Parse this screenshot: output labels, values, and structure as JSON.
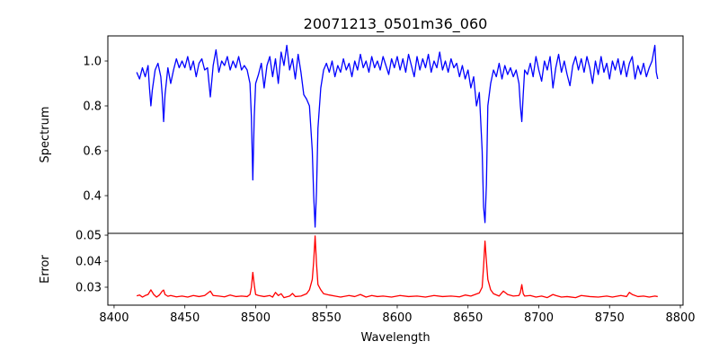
{
  "chart_data": [
    {
      "type": "line",
      "title": "20071213_0501m36_060",
      "xlabel": "",
      "ylabel": "Spectrum",
      "xlim": [
        8395.6,
        8801.9
      ],
      "ylim": [
        0.232,
        1.112
      ],
      "yticks": [
        0.4,
        0.6,
        0.8,
        1.0
      ],
      "ytick_labels": [
        "0.4",
        "0.6",
        "0.8",
        "1.0"
      ],
      "grid": false,
      "series": [
        {
          "name": "Spectrum",
          "color": "#0000ff",
          "x": [
            8416,
            8418,
            8420,
            8422,
            8424,
            8425,
            8426,
            8427,
            8429,
            8431,
            8433,
            8434,
            8435,
            8436,
            8438,
            8440,
            8442,
            8444,
            8446,
            8448,
            8450,
            8452,
            8454,
            8456,
            8458,
            8460,
            8462,
            8464,
            8466,
            8468,
            8470,
            8472,
            8474,
            8476,
            8478,
            8480,
            8482,
            8484,
            8486,
            8488,
            8490,
            8492,
            8494,
            8496,
            8497,
            8498,
            8499,
            8500,
            8502,
            8504,
            8506,
            8508,
            8510,
            8512,
            8514,
            8516,
            8518,
            8520,
            8522,
            8524,
            8526,
            8528,
            8530,
            8532,
            8534,
            8536,
            8538,
            8540,
            8541,
            8542,
            8543,
            8544,
            8546,
            8548,
            8550,
            8552,
            8554,
            8556,
            8558,
            8560,
            8562,
            8564,
            8566,
            8568,
            8570,
            8572,
            8574,
            8576,
            8578,
            8580,
            8582,
            8584,
            8586,
            8588,
            8590,
            8592,
            8594,
            8596,
            8598,
            8600,
            8602,
            8604,
            8606,
            8608,
            8610,
            8612,
            8614,
            8616,
            8618,
            8620,
            8622,
            8624,
            8626,
            8628,
            8630,
            8632,
            8634,
            8636,
            8638,
            8640,
            8642,
            8644,
            8646,
            8648,
            8650,
            8652,
            8654,
            8656,
            8658,
            8660,
            8661,
            8662,
            8663,
            8664,
            8666,
            8668,
            8670,
            8672,
            8674,
            8676,
            8678,
            8680,
            8682,
            8684,
            8686,
            8687,
            8688,
            8689,
            8690,
            8692,
            8694,
            8696,
            8698,
            8700,
            8702,
            8704,
            8706,
            8708,
            8710,
            8712,
            8714,
            8716,
            8718,
            8720,
            8722,
            8724,
            8726,
            8728,
            8730,
            8732,
            8734,
            8736,
            8738,
            8740,
            8742,
            8744,
            8746,
            8748,
            8750,
            8752,
            8754,
            8756,
            8758,
            8760,
            8762,
            8764,
            8766,
            8768,
            8770,
            8772,
            8774,
            8776,
            8778,
            8780,
            8782,
            8783,
            8784
          ],
          "y": [
            0.95,
            0.92,
            0.97,
            0.93,
            0.98,
            0.88,
            0.8,
            0.87,
            0.96,
            0.99,
            0.93,
            0.85,
            0.73,
            0.85,
            0.97,
            0.9,
            0.96,
            1.01,
            0.97,
            1.0,
            0.97,
            1.02,
            0.96,
            1.0,
            0.93,
            0.99,
            1.01,
            0.96,
            0.97,
            0.84,
            0.98,
            1.05,
            0.95,
            1.0,
            0.98,
            1.02,
            0.96,
            1.0,
            0.97,
            1.02,
            0.96,
            0.98,
            0.96,
            0.9,
            0.75,
            0.47,
            0.75,
            0.9,
            0.94,
            0.99,
            0.88,
            0.98,
            1.02,
            0.93,
            1.01,
            0.9,
            1.04,
            0.98,
            1.07,
            0.96,
            1.01,
            0.92,
            1.03,
            0.95,
            0.85,
            0.83,
            0.8,
            0.6,
            0.4,
            0.26,
            0.42,
            0.7,
            0.88,
            0.96,
            0.99,
            0.95,
            1.0,
            0.93,
            0.98,
            0.95,
            1.01,
            0.96,
            0.99,
            0.93,
            1.0,
            0.96,
            1.03,
            0.97,
            1.0,
            0.95,
            1.02,
            0.97,
            1.0,
            0.96,
            1.02,
            0.98,
            0.94,
            1.01,
            0.97,
            1.02,
            0.96,
            1.01,
            0.95,
            1.03,
            0.98,
            0.93,
            1.02,
            0.96,
            1.01,
            0.97,
            1.03,
            0.95,
            1.0,
            0.97,
            1.04,
            0.96,
            1.0,
            0.95,
            1.01,
            0.97,
            0.99,
            0.93,
            0.98,
            0.92,
            0.96,
            0.88,
            0.93,
            0.8,
            0.86,
            0.6,
            0.35,
            0.28,
            0.45,
            0.8,
            0.9,
            0.96,
            0.93,
            0.99,
            0.92,
            0.98,
            0.94,
            0.97,
            0.93,
            0.96,
            0.9,
            0.8,
            0.73,
            0.85,
            0.96,
            0.94,
            0.99,
            0.93,
            1.02,
            0.96,
            0.91,
            1.0,
            0.96,
            1.02,
            0.88,
            0.97,
            1.03,
            0.95,
            1.0,
            0.94,
            0.89,
            0.98,
            1.02,
            0.96,
            1.01,
            0.95,
            1.02,
            0.97,
            0.9,
            1.0,
            0.94,
            1.02,
            0.95,
            0.99,
            0.92,
            1.0,
            0.96,
            1.01,
            0.94,
            1.0,
            0.93,
            0.99,
            1.02,
            0.92,
            0.98,
            0.94,
            0.99,
            0.93,
            0.97,
            1.0,
            1.07,
            0.95,
            0.92
          ]
        }
      ]
    },
    {
      "type": "line",
      "title": "",
      "xlabel": "Wavelength",
      "ylabel": "Error",
      "xlim": [
        8395.6,
        8801.9
      ],
      "ylim": [
        0.0231,
        0.0507
      ],
      "xticks": [
        8400,
        8450,
        8500,
        8550,
        8600,
        8650,
        8700,
        8750,
        8800
      ],
      "xtick_labels": [
        "8400",
        "8450",
        "8500",
        "8550",
        "8600",
        "8650",
        "8700",
        "8750",
        "8800"
      ],
      "yticks": [
        0.03,
        0.04,
        0.05
      ],
      "ytick_labels": [
        "0.03",
        "0.04",
        "0.05"
      ],
      "grid": false,
      "series": [
        {
          "name": "Error",
          "color": "#ff0000",
          "x": [
            8416,
            8418,
            8420,
            8422,
            8424,
            8426,
            8428,
            8430,
            8432,
            8434,
            8435,
            8436,
            8438,
            8440,
            8444,
            8448,
            8452,
            8456,
            8460,
            8464,
            8468,
            8470,
            8474,
            8478,
            8482,
            8486,
            8490,
            8494,
            8496,
            8497,
            8498,
            8499,
            8500,
            8502,
            8506,
            8510,
            8512,
            8514,
            8516,
            8518,
            8520,
            8524,
            8526,
            8528,
            8532,
            8536,
            8538,
            8540,
            8541,
            8542,
            8543,
            8544,
            8546,
            8548,
            8552,
            8556,
            8560,
            8566,
            8570,
            8574,
            8578,
            8582,
            8586,
            8590,
            8596,
            8602,
            8608,
            8614,
            8620,
            8626,
            8632,
            8638,
            8644,
            8648,
            8652,
            8655,
            8658,
            8660,
            8661,
            8662,
            8663,
            8664,
            8666,
            8668,
            8672,
            8675,
            8678,
            8682,
            8686,
            8687,
            8688,
            8689,
            8690,
            8694,
            8698,
            8702,
            8706,
            8710,
            8712,
            8716,
            8720,
            8726,
            8730,
            8736,
            8742,
            8748,
            8752,
            8758,
            8762,
            8764,
            8766,
            8770,
            8774,
            8778,
            8782,
            8784
          ],
          "y": [
            0.0267,
            0.027,
            0.0262,
            0.0268,
            0.0272,
            0.029,
            0.0272,
            0.0262,
            0.027,
            0.0285,
            0.0289,
            0.0272,
            0.0265,
            0.0268,
            0.0263,
            0.0266,
            0.0262,
            0.0268,
            0.0264,
            0.0268,
            0.0285,
            0.0268,
            0.0266,
            0.0263,
            0.027,
            0.0264,
            0.0266,
            0.0264,
            0.0272,
            0.03,
            0.0357,
            0.031,
            0.0272,
            0.0268,
            0.0264,
            0.0268,
            0.0262,
            0.028,
            0.0268,
            0.0275,
            0.026,
            0.0266,
            0.0276,
            0.0264,
            0.0266,
            0.0275,
            0.029,
            0.033,
            0.04,
            0.0497,
            0.039,
            0.031,
            0.029,
            0.0275,
            0.027,
            0.0266,
            0.0262,
            0.0268,
            0.0264,
            0.0272,
            0.0262,
            0.0268,
            0.0264,
            0.0266,
            0.0262,
            0.0268,
            0.0264,
            0.0266,
            0.0262,
            0.0268,
            0.0264,
            0.0266,
            0.0263,
            0.027,
            0.0266,
            0.0272,
            0.0278,
            0.03,
            0.038,
            0.0477,
            0.04,
            0.033,
            0.029,
            0.0275,
            0.0266,
            0.0285,
            0.0272,
            0.0266,
            0.0268,
            0.028,
            0.031,
            0.0275,
            0.0266,
            0.0268,
            0.0262,
            0.0266,
            0.026,
            0.0272,
            0.0268,
            0.0262,
            0.0264,
            0.026,
            0.0268,
            0.0264,
            0.0262,
            0.0266,
            0.0262,
            0.0268,
            0.0264,
            0.028,
            0.0272,
            0.0264,
            0.0266,
            0.0262,
            0.0266,
            0.0264
          ]
        }
      ]
    }
  ]
}
